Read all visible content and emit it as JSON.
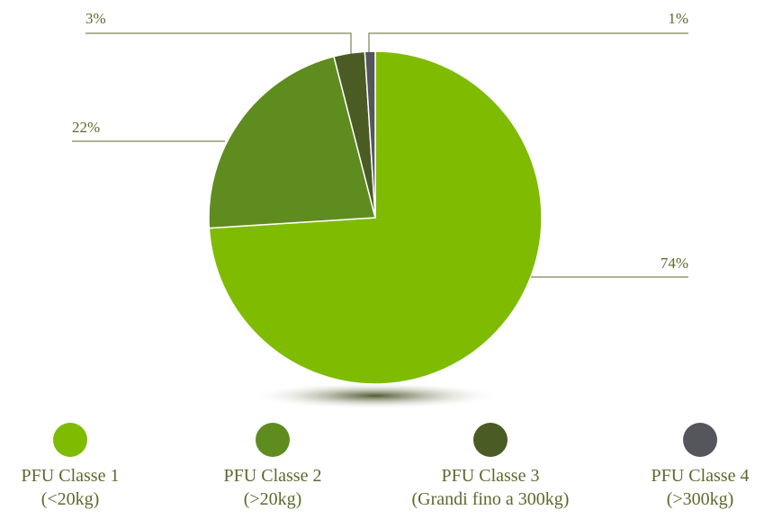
{
  "chart_data": {
    "type": "pie",
    "categories": [
      "PFU Classe 1\n(<20kg)",
      "PFU Classe 2\n(>20kg)",
      "PFU Classe 3\n(Grandi fino a 300kg)",
      "PFU Classe 4\n(>300kg)"
    ],
    "values": [
      74,
      22,
      3,
      1
    ],
    "value_labels": [
      "74%",
      "22%",
      "3%",
      "1%"
    ],
    "colors": [
      "#7fbb00",
      "#5f8c1f",
      "#4b5b24",
      "#55565b"
    ]
  }
}
